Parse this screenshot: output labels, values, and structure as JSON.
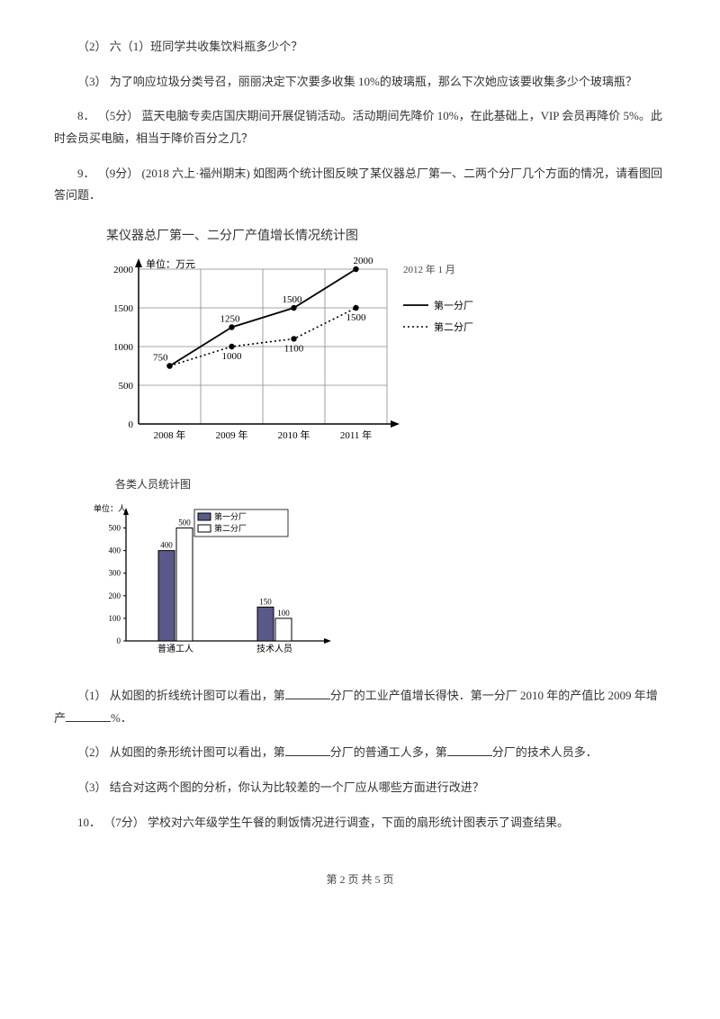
{
  "q2": "（2）  六（1）班同学共收集饮料瓶多少个？",
  "q3": "（3）  为了响应垃圾分类号召，丽丽决定下次要多收集 10%的玻璃瓶，那么下次她应该要收集多少个玻璃瓶？",
  "q8": "8．  （5分）   蓝天电脑专卖店国庆期间开展促销活动。活动期间先降价 10%，在此基础上，VIP 会员再降价 5%。此时会员买电脑，相当于降价百分之几？",
  "q9": "9．  （9分）  (2018 六上·福州期末)  如图两个统计图反映了某仪器总厂第一、二两个分厂几个方面的情况，请看图回答问题．",
  "lineChart": {
    "title": "某仪器总厂第一、二分厂产值增长情况统计图",
    "unit": "单位：万元",
    "dateLabel": "2012 年 1 月",
    "legend1": "第一分厂",
    "legend2": "第二分厂",
    "categories": [
      "2008 年",
      "2009 年",
      "2010 年",
      "2011 年"
    ],
    "yTicks": [
      0,
      500,
      1000,
      1500,
      2000
    ],
    "series1": [
      750,
      1250,
      1500,
      2000
    ],
    "series2": [
      750,
      1000,
      1100,
      1500
    ],
    "colors": {
      "axis": "#000",
      "grid": "#999",
      "line1": "#000",
      "line2": "#000",
      "bg": "#fff"
    }
  },
  "barChart": {
    "title": "各类人员统计图",
    "unit": "单位：人",
    "legend1": "第一分厂",
    "legend2": "第二分厂",
    "categories": [
      "普通工人",
      "技术人员"
    ],
    "yTicks": [
      0,
      100,
      200,
      300,
      400,
      500
    ],
    "series1": [
      400,
      150
    ],
    "series2": [
      500,
      100
    ],
    "colors": {
      "bar1": "#5a5a8a",
      "bar2": "#ffffff",
      "axis": "#000",
      "stroke": "#000"
    }
  },
  "q9_1a": "（1）  从如图的折线统计图可以看出，第",
  "q9_1b": "分厂的工业产值增长得快．第一分厂 2010 年的产值比 2009 年增产",
  "q9_1c": "%．",
  "q9_2a": "（2）  从如图的条形统计图可以看出，第",
  "q9_2b": "分厂的普通工人多，第",
  "q9_2c": "分厂的技术人员多．",
  "q9_3": "（3）  结合对这两个图的分析，你认为比较差的一个厂应从哪些方面进行改进？",
  "q10": "10．  （7分）  学校对六年级学生午餐的剩饭情况进行调查，下面的扇形统计图表示了调查结果。",
  "footer": "第 2 页 共 5 页"
}
